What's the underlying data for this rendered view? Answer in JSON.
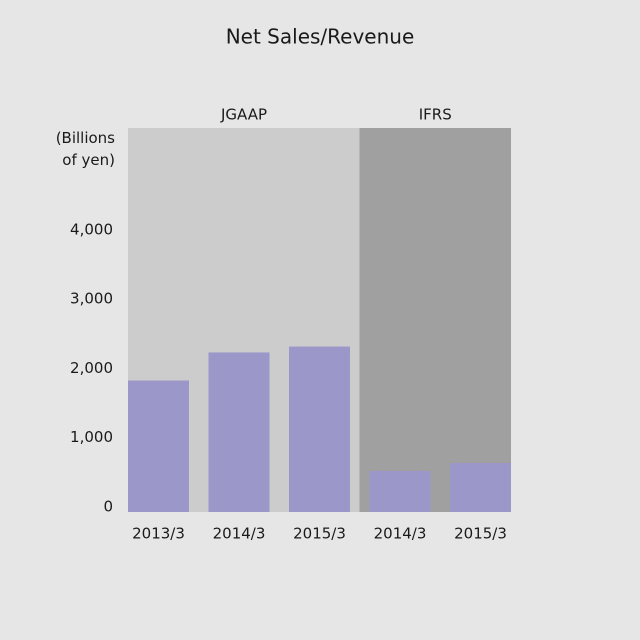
{
  "chart_data": {
    "type": "bar",
    "title": "Net Sales/Revenue",
    "y_label": "(Billions of yen)",
    "groups": [
      {
        "name": "JGAAP",
        "background": "#cccccc",
        "categories": [
          "2013/3",
          "2014/3",
          "2015/3"
        ],
        "values": [
          1855,
          2260,
          2345
        ]
      },
      {
        "name": "IFRS",
        "background": "#a0a0a0",
        "categories": [
          "2014/3",
          "2015/3"
        ],
        "values": [
          550,
          665
        ]
      }
    ],
    "color": "#9b97c8",
    "ylim": [
      0,
      5500
    ],
    "yticks": [
      0,
      {
        "value": 1000,
        "label": "1,000"
      },
      {
        "value": 2000,
        "label": "2,000"
      },
      {
        "value": 3000,
        "label": "3,000"
      },
      {
        "value": 4000,
        "label": "4,000"
      }
    ]
  }
}
